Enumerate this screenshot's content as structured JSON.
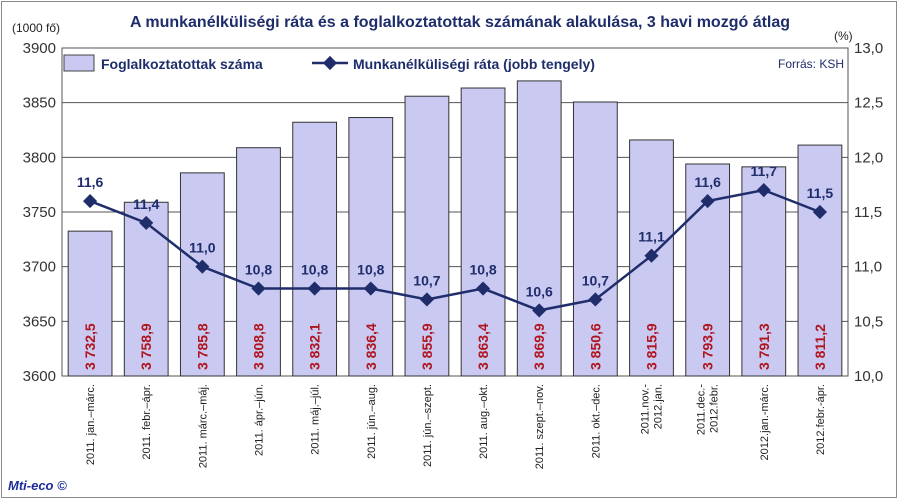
{
  "chart_data": {
    "type": "bar+line",
    "title": "A munkanélküliségi ráta és a foglalkoztatottak számának alakulása, 3 havi mozgó átlag",
    "left_unit": "(1000 fő)",
    "right_unit": "(%)",
    "source": "Forrás: KSH",
    "logo": "Mti-eco ©",
    "left_axis": {
      "min": 3600,
      "max": 3900,
      "step": 50,
      "ticks": [
        "3600",
        "3650",
        "3700",
        "3750",
        "3800",
        "3850",
        "3900"
      ]
    },
    "right_axis": {
      "min": 10.0,
      "max": 13.0,
      "step": 0.5,
      "ticks": [
        "10,0",
        "10,5",
        "11,0",
        "11,5",
        "12,0",
        "12,5",
        "13,0"
      ]
    },
    "categories": [
      [
        "2011. jan.–márc."
      ],
      [
        "2011. febr.–ápr."
      ],
      [
        "2011. márc.–máj."
      ],
      [
        "2011. ápr.–jún."
      ],
      [
        "2011. máj.–júl."
      ],
      [
        "2011. jún.–aug."
      ],
      [
        "2011. jún.–szept."
      ],
      [
        "2011. aug.–okt."
      ],
      [
        "2011. szept.–nov."
      ],
      [
        "2011. okt.–dec."
      ],
      [
        "2011.nov.-",
        "2012.jan."
      ],
      [
        "2011.dec.-",
        "2012.febr."
      ],
      [
        "2012.jan.-márc."
      ],
      [
        "2012.febr.-ápr."
      ]
    ],
    "series": [
      {
        "name": "Foglalkoztatottak száma",
        "type": "bar",
        "axis": "left",
        "color": "#c9c9f2",
        "values": [
          3732.5,
          3758.9,
          3785.8,
          3808.8,
          3832.1,
          3836.4,
          3855.9,
          3863.4,
          3869.9,
          3850.6,
          3815.9,
          3793.9,
          3791.3,
          3811.2
        ],
        "labels": [
          "3 732,5",
          "3 758,9",
          "3 785,8",
          "3 808,8",
          "3 832,1",
          "3 836,4",
          "3 855,9",
          "3 863,4",
          "3 869,9",
          "3 850,6",
          "3 815,9",
          "3 793,9",
          "3 791,3",
          "3 811,2"
        ]
      },
      {
        "name": "Munkanélküliségi ráta (jobb tengely)",
        "type": "line",
        "axis": "right",
        "color": "#1f2d6b",
        "values": [
          11.6,
          11.4,
          11.0,
          10.8,
          10.8,
          10.8,
          10.7,
          10.8,
          10.6,
          10.7,
          11.1,
          11.6,
          11.7,
          11.5
        ],
        "labels": [
          "11,6",
          "11,4",
          "11,0",
          "10,8",
          "10,8",
          "10,8",
          "10,7",
          "10,8",
          "10,6",
          "10,7",
          "11,1",
          "11,6",
          "11,7",
          "11,5"
        ]
      }
    ]
  }
}
